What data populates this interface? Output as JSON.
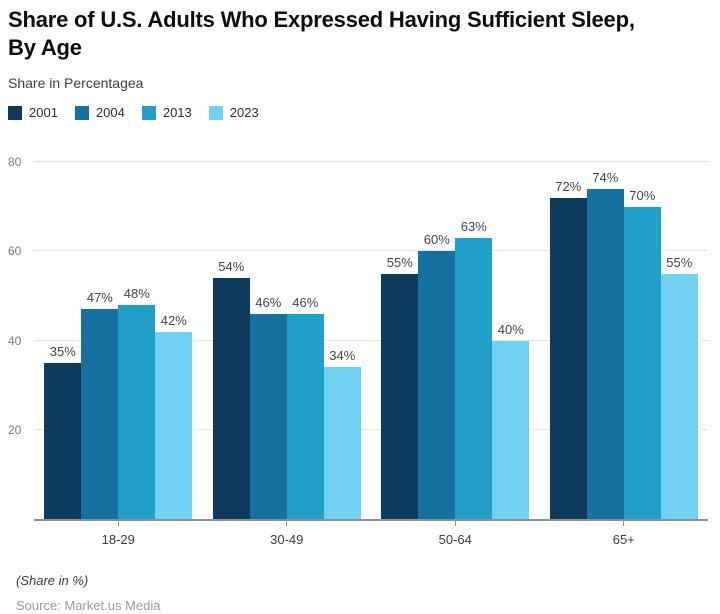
{
  "header": {
    "title": "Share of U.S. Adults Who Expressed Having Sufficient Sleep, By Age",
    "title_lines": [
      "Share of U.S. Adults Who Expressed Having Sufficient Sleep,",
      "By Age"
    ],
    "subtitle": "Share in Percentagea"
  },
  "chart_data": {
    "type": "bar",
    "title": "Share of U.S. Adults Who Expressed Having Sufficient Sleep, By Age",
    "categories": [
      "18-29",
      "30-49",
      "50-64",
      "65+"
    ],
    "series": [
      {
        "name": "2001",
        "color": "#0e3a5c",
        "values": [
          35,
          54,
          55,
          72
        ]
      },
      {
        "name": "2004",
        "color": "#15719f",
        "values": [
          47,
          46,
          60,
          74
        ]
      },
      {
        "name": "2013",
        "color": "#219fc9",
        "values": [
          48,
          46,
          63,
          70
        ]
      },
      {
        "name": "2023",
        "color": "#70d1f3",
        "values": [
          42,
          34,
          40,
          55
        ]
      }
    ],
    "xlabel": "",
    "ylabel": "",
    "ylim": [
      0,
      80
    ],
    "yticks": [
      20,
      40,
      60,
      80
    ],
    "grid": true,
    "legend_position": "top",
    "value_labels": true,
    "value_suffix": "%"
  },
  "footer": {
    "note": "(Share in %)",
    "source": "Source: Market.us Media"
  },
  "colors": {
    "grid": "#e4e4e4",
    "axis": "#8f8f8f",
    "value_label": "#444444",
    "xtick_label": "#3c3c3c",
    "ytick_label": "#7a7a7a"
  }
}
